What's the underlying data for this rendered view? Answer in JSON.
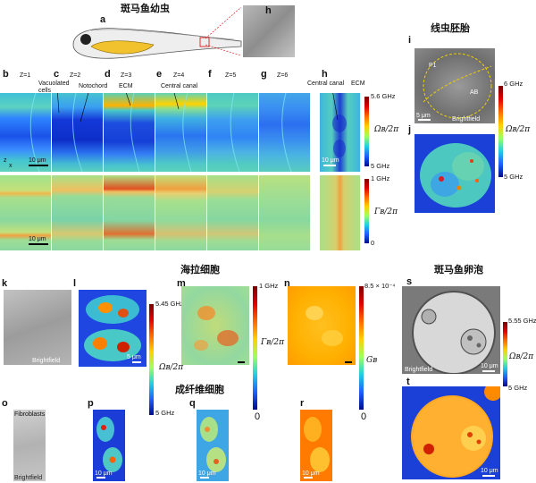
{
  "headings": {
    "zebrafish_larva": "斑马鱼幼虫",
    "worm_embryo": "线虫胚胎",
    "hela": "海拉细胞",
    "zebrafish_egg": "斑马鱼卵泡",
    "fibroblast": "成纤维细胞"
  },
  "panel_labels": {
    "a": "a",
    "b": "b",
    "c": "c",
    "d": "d",
    "e": "e",
    "f": "f",
    "g": "g",
    "h_top": "h",
    "h": "h",
    "i": "i",
    "j": "j",
    "k": "k",
    "l": "l",
    "m": "m",
    "n": "n",
    "o": "o",
    "p": "p",
    "q": "q",
    "r": "r",
    "s": "s",
    "t": "t"
  },
  "z_labels": [
    "Z=1",
    "Z=2",
    "Z=3",
    "Z=4",
    "Z=5",
    "Z=6"
  ],
  "annotations": {
    "vacuolated": "Vacuolated cells",
    "notochord": "Notochord",
    "ecm_d": "ECM",
    "central_canal_e": "Central canal",
    "central_canal_h": "Central canal",
    "ecm_h": "ECM",
    "p1": "P1",
    "ab": "AB",
    "fibroblasts": "Fibroblasts"
  },
  "scale_bars": {
    "b_top": "10 μm",
    "b_bot": "10 μm",
    "h_top": "10 μm",
    "i": "5 μm",
    "l": "5 μm",
    "s": "10 μm",
    "t": "10 μm",
    "p": "10 μm",
    "q": "10 μm",
    "r": "10 μm"
  },
  "brightfield": {
    "i": "Brightfield",
    "k": "Brightfield",
    "o": "Brightfield",
    "s": "Brightfield"
  },
  "colorbars": {
    "h_top": {
      "max": "5.6 GHz",
      "min": "5 GHz",
      "symbol": "Ωʙ/2π"
    },
    "h_bot": {
      "max": "1 GHz",
      "min": "0",
      "symbol": "Γʙ/2π"
    },
    "ij": {
      "max": "6 GHz",
      "min": "5 GHz",
      "symbol": "Ωʙ/2π"
    },
    "l": {
      "max": "5.45 GHz",
      "min": "5 GHz",
      "symbol": "Ωʙ/2π"
    },
    "m": {
      "max": "1 GHz",
      "min": "0",
      "symbol": "Γʙ/2π"
    },
    "n": {
      "max": "8.5 × 10⁻⁴",
      "min": "0",
      "symbol": "Gʙ"
    },
    "st": {
      "max": "5.55 GHz",
      "min": "5 GHz",
      "symbol": "Ωʙ/2π"
    }
  },
  "axis_marks": {
    "z": "z",
    "x": "x"
  },
  "colors": {
    "map_blue": "#1f6fff",
    "map_cyan": "#35c6d8",
    "map_orange": "#ff8a00",
    "map_red": "#d40000"
  }
}
